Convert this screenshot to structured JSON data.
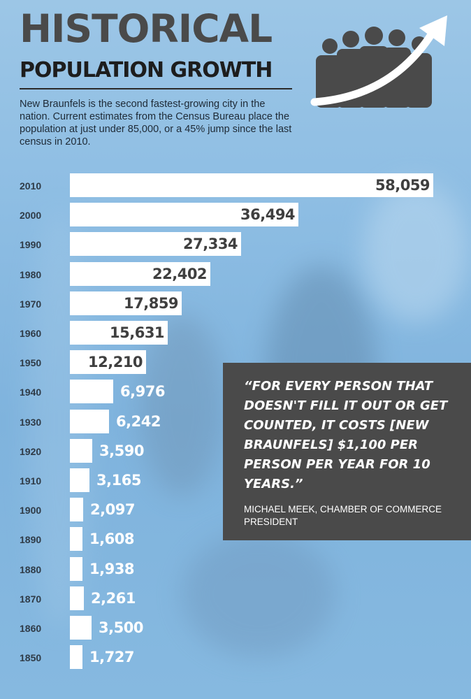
{
  "header": {
    "title_line1": "HISTORICAL",
    "title_line2": "POPULATION GROWTH",
    "intro": "New Braunfels is the second fastest-growing city in the nation. Current estimates from the Census Bureau place the population at just under 85,000, or a 45% jump since the last census in 2010."
  },
  "quote": {
    "text": "“FOR EVERY PERSON THAT DOESN'T FILL IT OUT OR GET COUNTED, IT COSTS [NEW BRAUNFELS] $1,100 PER PERSON PER YEAR FOR 10 YEARS.”",
    "attribution": "MICHAEL MEEK, CHAMBER OF COMMERCE PRESIDENT"
  },
  "logo": {
    "icon": "people-growth-arrow-icon"
  },
  "colors": {
    "bar": "#ffffff",
    "value_dark": "#3f3f3f",
    "value_light": "#ffffff",
    "quote_bg": "#4a4a4a",
    "title": "#4a4a4a"
  },
  "chart_data": {
    "type": "bar",
    "orientation": "horizontal",
    "categories": [
      "2010",
      "2000",
      "1990",
      "1980",
      "1970",
      "1960",
      "1950",
      "1940",
      "1930",
      "1920",
      "1910",
      "1900",
      "1890",
      "1880",
      "1870",
      "1860",
      "1850"
    ],
    "values": [
      58059,
      36494,
      27334,
      22402,
      17859,
      15631,
      12210,
      6976,
      6242,
      3590,
      3165,
      2097,
      1608,
      1938,
      2261,
      3500,
      1727
    ],
    "labels": [
      "58,059",
      "36,494",
      "27,334",
      "22,402",
      "17,859",
      "15,631",
      "12,210",
      "6,976",
      "6,242",
      "3,590",
      "3,165",
      "2,097",
      "1,608",
      "1,938",
      "2,261",
      "3,500",
      "1,727"
    ],
    "title": "",
    "xlabel": "",
    "ylabel": "",
    "xlim": [
      0,
      58059
    ],
    "grid": false,
    "legend": "none",
    "value_label_position": "inside bar when it fits, otherwise just right of bar"
  }
}
